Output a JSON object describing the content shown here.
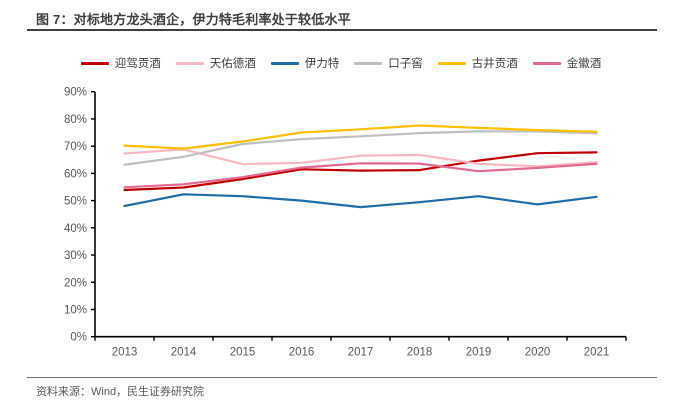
{
  "header": {
    "title": "图 7：对标地方龙头酒企，伊力特毛利率处于较低水平"
  },
  "footer": {
    "source": "资料来源：Wind，民生证券研究院"
  },
  "chart_data": {
    "type": "line",
    "title": "对标地方龙头酒企，伊力特毛利率处于较低水平",
    "categories": [
      "2013",
      "2014",
      "2015",
      "2016",
      "2017",
      "2018",
      "2019",
      "2020",
      "2021"
    ],
    "series": [
      {
        "name": "迎驾贡酒",
        "color": "#c00000",
        "values": [
          53.9,
          54.8,
          57.9,
          61.5,
          61.0,
          61.2,
          64.7,
          67.4,
          67.7
        ]
      },
      {
        "name": "天佑德酒",
        "color": "#f8b8c3",
        "values": [
          67.3,
          68.8,
          63.4,
          63.9,
          66.5,
          66.8,
          63.5,
          62.6,
          64.1
        ]
      },
      {
        "name": "伊力特",
        "color": "#1f6da9",
        "values": [
          48.0,
          52.3,
          51.6,
          50.0,
          47.6,
          49.4,
          51.6,
          48.6,
          51.4
        ]
      },
      {
        "name": "口子窖",
        "color": "#bfbfbf",
        "values": [
          63.2,
          66.1,
          70.8,
          72.6,
          73.6,
          74.8,
          75.4,
          75.4,
          74.7
        ]
      },
      {
        "name": "古井贡酒",
        "color": "#ffc000",
        "values": [
          70.2,
          69.1,
          71.7,
          75.0,
          76.2,
          77.6,
          76.7,
          75.9,
          75.3
        ]
      },
      {
        "name": "金徽酒",
        "color": "#e2698f",
        "values": [
          54.9,
          56.0,
          58.6,
          62.1,
          63.7,
          63.6,
          60.8,
          62.0,
          63.5
        ]
      }
    ],
    "ylabel": "",
    "xlabel": "",
    "ylim": [
      0,
      90
    ],
    "ytick_step": 10,
    "ytick_labels": [
      "0%",
      "10%",
      "20%",
      "30%",
      "40%",
      "50%",
      "60%",
      "70%",
      "80%",
      "90%"
    ],
    "unit": "percent",
    "grid": false,
    "legend_position": "top",
    "axis_color": "#000000",
    "tick_label_color": "#595959"
  }
}
